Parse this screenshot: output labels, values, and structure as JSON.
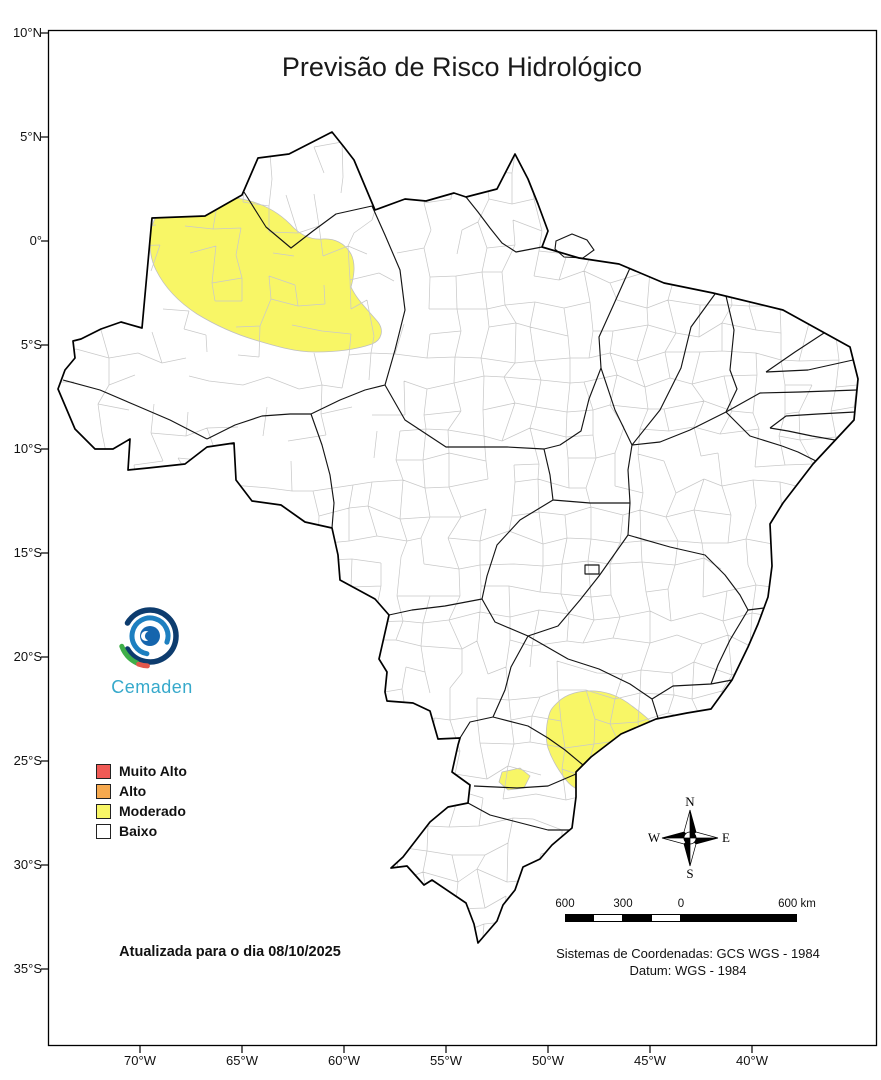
{
  "title": "Previsão de Risco Hidrológico",
  "logo": {
    "text": "Cemaden"
  },
  "legend": {
    "items": [
      {
        "label": "Muito Alto",
        "color": "#F05A55"
      },
      {
        "label": "Alto",
        "color": "#F6A94E"
      },
      {
        "label": "Moderado",
        "color": "#F8F666"
      },
      {
        "label": "Baixo",
        "color": "#FFFFFF"
      }
    ]
  },
  "update_note": "Atualizada para o dia 08/10/2025",
  "axes": {
    "lat_labels": [
      "10°N",
      "5°N",
      "0°",
      "5°S",
      "10°S",
      "15°S",
      "20°S",
      "25°S",
      "30°S",
      "35°S"
    ],
    "lon_labels": [
      "70°W",
      "65°W",
      "60°W",
      "55°W",
      "50°W",
      "45°W",
      "40°W"
    ]
  },
  "compass": {
    "n": "N",
    "e": "E",
    "s": "S",
    "w": "W"
  },
  "scale_bar": {
    "labels": [
      "600",
      "300",
      "0",
      "600 km"
    ]
  },
  "footer": {
    "coordinate_system": "Sistemas de Coordenadas: GCS WGS - 1984",
    "datum": "Datum: WGS - 1984"
  },
  "map": {
    "country": "Brasil",
    "risk_regions": [
      {
        "name": "regiao-oeste-amazonas",
        "level": "Moderado"
      },
      {
        "name": "regiao-litoral-sp",
        "level": "Moderado"
      },
      {
        "name": "regiao-litoral-pr",
        "level": "Moderado"
      }
    ]
  }
}
